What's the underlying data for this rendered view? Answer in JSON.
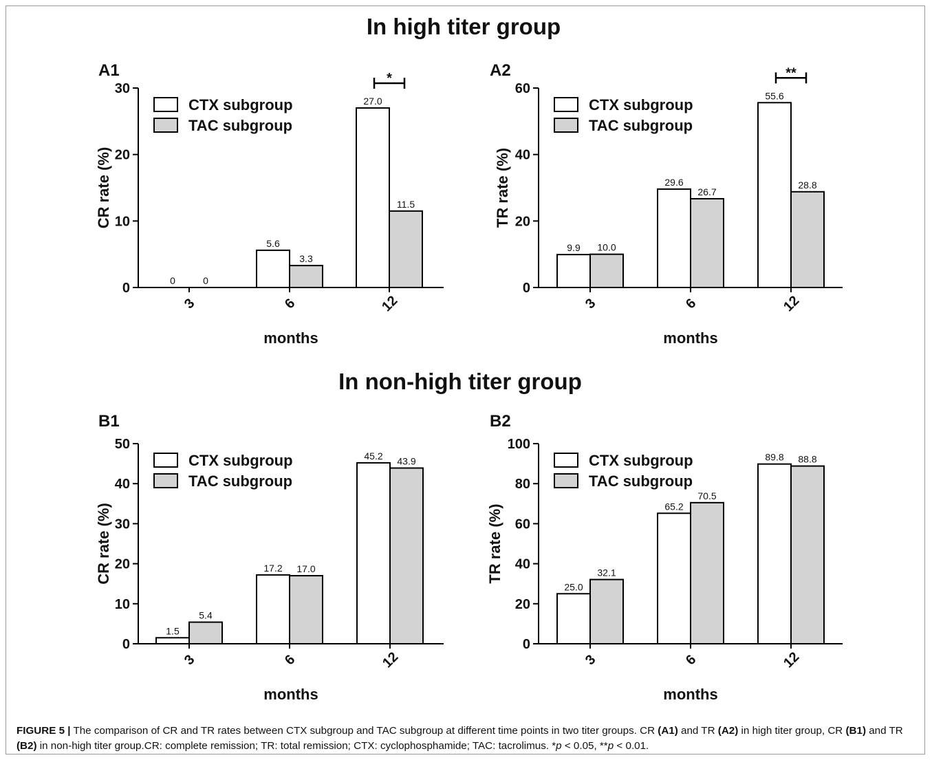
{
  "titles": {
    "group_high": "In high titer group",
    "group_nonhigh": "In non-high titer group"
  },
  "legend": {
    "ctx": "CTX subgroup",
    "tac": "TAC subgroup"
  },
  "colors": {
    "ctx_fill": "#ffffff",
    "tac_fill": "#d3d3d3",
    "stroke": "#000000"
  },
  "chart_data": [
    {
      "id": "A1",
      "panel_label": "A1",
      "type": "bar",
      "categories": [
        "3",
        "6",
        "12"
      ],
      "series": [
        {
          "name": "CTX subgroup",
          "values": [
            0,
            5.6,
            27.0
          ],
          "labels": [
            "0",
            "5.6",
            "27.0"
          ]
        },
        {
          "name": "TAC subgroup",
          "values": [
            0,
            3.3,
            11.5
          ],
          "labels": [
            "0",
            "3.3",
            "11.5"
          ]
        }
      ],
      "xlabel": "months",
      "ylabel": "CR rate (%)",
      "ylim": [
        0,
        30
      ],
      "yticks": [
        0,
        10,
        20,
        30
      ],
      "significance": {
        "category_index": 2,
        "mark": "*"
      },
      "legend_position": "top-left"
    },
    {
      "id": "A2",
      "panel_label": "A2",
      "type": "bar",
      "categories": [
        "3",
        "6",
        "12"
      ],
      "series": [
        {
          "name": "CTX subgroup",
          "values": [
            9.9,
            29.6,
            55.6
          ],
          "labels": [
            "9.9",
            "29.6",
            "55.6"
          ]
        },
        {
          "name": "TAC subgroup",
          "values": [
            10.0,
            26.7,
            28.8
          ],
          "labels": [
            "10.0",
            "26.7",
            "28.8"
          ]
        }
      ],
      "xlabel": "months",
      "ylabel": "TR rate (%)",
      "ylim": [
        0,
        60
      ],
      "yticks": [
        0,
        20,
        40,
        60
      ],
      "significance": {
        "category_index": 2,
        "mark": "**"
      },
      "legend_position": "top-left"
    },
    {
      "id": "B1",
      "panel_label": "B1",
      "type": "bar",
      "categories": [
        "3",
        "6",
        "12"
      ],
      "series": [
        {
          "name": "CTX subgroup",
          "values": [
            1.5,
            17.2,
            45.2
          ],
          "labels": [
            "1.5",
            "17.2",
            "45.2"
          ]
        },
        {
          "name": "TAC subgroup",
          "values": [
            5.4,
            17.0,
            43.9
          ],
          "labels": [
            "5.4",
            "17.0",
            "43.9"
          ]
        }
      ],
      "xlabel": "months",
      "ylabel": "CR rate (%)",
      "ylim": [
        0,
        50
      ],
      "yticks": [
        0,
        10,
        20,
        30,
        40,
        50
      ],
      "legend_position": "top-left"
    },
    {
      "id": "B2",
      "panel_label": "B2",
      "type": "bar",
      "categories": [
        "3",
        "6",
        "12"
      ],
      "series": [
        {
          "name": "CTX subgroup",
          "values": [
            25.0,
            65.2,
            89.8
          ],
          "labels": [
            "25.0",
            "65.2",
            "89.8"
          ]
        },
        {
          "name": "TAC subgroup",
          "values": [
            32.1,
            70.5,
            88.8
          ],
          "labels": [
            "32.1",
            "70.5",
            "88.8"
          ]
        }
      ],
      "xlabel": "months",
      "ylabel": "TR rate (%)",
      "ylim": [
        0,
        100
      ],
      "yticks": [
        0,
        20,
        40,
        60,
        80,
        100
      ],
      "legend_position": "top-left"
    }
  ],
  "caption": {
    "lead": "FIGURE 5 |",
    "t1": " The comparison of CR and TR rates between CTX subgroup and TAC subgroup at different time points in two titer groups. CR ",
    "r1": "(A1)",
    "t2": " and TR ",
    "r2": "(A2)",
    "t3": " in high titer group, CR ",
    "r3": "(B1)",
    "t4": " and TR ",
    "r4": "(B2)",
    "t5": " in non-high titer group.CR: complete remission; TR: total remission; CTX: cyclophosphamide; TAC: tacrolimus. *",
    "p1": "p",
    "t6": " < 0.05, **",
    "p2": "p",
    "t7": " < 0.01."
  }
}
